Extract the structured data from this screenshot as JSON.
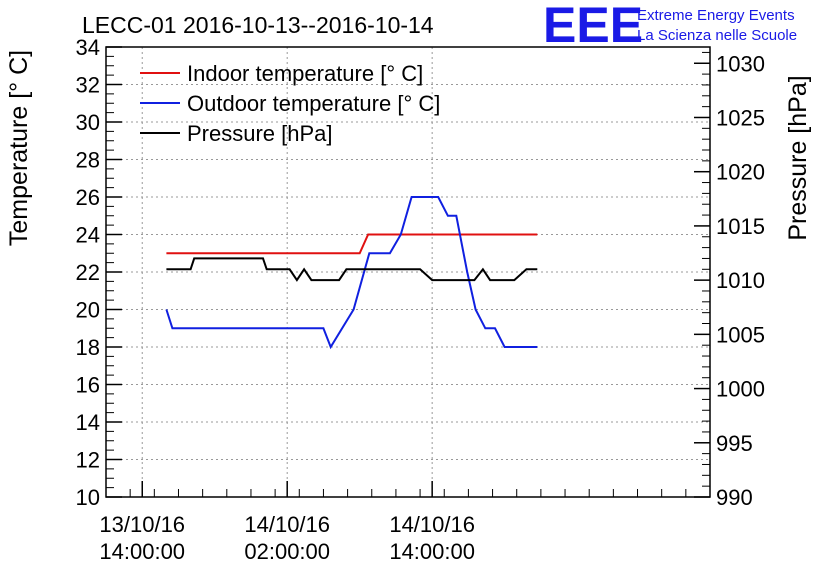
{
  "chart_data": {
    "type": "line",
    "title": "LECC-01 2016-10-13--2016-10-14",
    "ylabel": "Temperature [° C]",
    "y2label": "Pressure [hPa]",
    "ylim": [
      10,
      34
    ],
    "y2lim": [
      990,
      1031.5
    ],
    "xlim": [
      -3,
      47
    ],
    "yticks": [
      "10",
      "12",
      "14",
      "16",
      "18",
      "20",
      "22",
      "24",
      "26",
      "28",
      "30",
      "32",
      "34"
    ],
    "y2ticks": [
      "990",
      "995",
      "1000",
      "1005",
      "1010",
      "1015",
      "1020",
      "1025",
      "1030"
    ],
    "xticks": [
      {
        "x": 0,
        "date": "13/10/16",
        "time": "14:00:00"
      },
      {
        "x": 12,
        "date": "14/10/16",
        "time": "02:00:00"
      },
      {
        "x": 24,
        "date": "14/10/16",
        "time": "14:00:00"
      }
    ],
    "grid": true,
    "legend_position": "top-left",
    "series": [
      {
        "name": "Indoor temperature [° C]",
        "axis": "left",
        "color": "#e01010",
        "points": [
          [
            2,
            23
          ],
          [
            18,
            23
          ],
          [
            18.7,
            24
          ],
          [
            32.7,
            24
          ]
        ]
      },
      {
        "name": "Outdoor temperature [° C]",
        "axis": "left",
        "color": "#1020e0",
        "points": [
          [
            2,
            20
          ],
          [
            2.5,
            19
          ],
          [
            15,
            19
          ],
          [
            15.6,
            18
          ],
          [
            17.5,
            20
          ],
          [
            18.8,
            23
          ],
          [
            19.3,
            23
          ],
          [
            20.5,
            23
          ],
          [
            21.4,
            24
          ],
          [
            22.3,
            26
          ],
          [
            24.5,
            26
          ],
          [
            25.3,
            25
          ],
          [
            26,
            25
          ],
          [
            26.9,
            22
          ],
          [
            27.6,
            20
          ],
          [
            28.4,
            19
          ],
          [
            29.2,
            19
          ],
          [
            30,
            18
          ],
          [
            32.7,
            18
          ]
        ]
      },
      {
        "name": "Pressure [hPa]",
        "axis": "right",
        "color": "#000000",
        "points": [
          [
            2,
            1011
          ],
          [
            4,
            1011
          ],
          [
            4.3,
            1012
          ],
          [
            10,
            1012
          ],
          [
            10.3,
            1011
          ],
          [
            12.2,
            1011
          ],
          [
            12.8,
            1010
          ],
          [
            13.4,
            1011
          ],
          [
            14,
            1010
          ],
          [
            16.3,
            1010
          ],
          [
            16.9,
            1011
          ],
          [
            23,
            1011
          ],
          [
            24,
            1010
          ],
          [
            27.5,
            1010
          ],
          [
            28.2,
            1011
          ],
          [
            28.8,
            1010
          ],
          [
            30.8,
            1010
          ],
          [
            31.8,
            1011
          ],
          [
            32.7,
            1011
          ]
        ]
      }
    ]
  },
  "logo": {
    "text": "EEE",
    "line1": "Extreme Energy Events",
    "line2": "La Scienza nelle Scuole",
    "color": "#1a1ae6"
  }
}
